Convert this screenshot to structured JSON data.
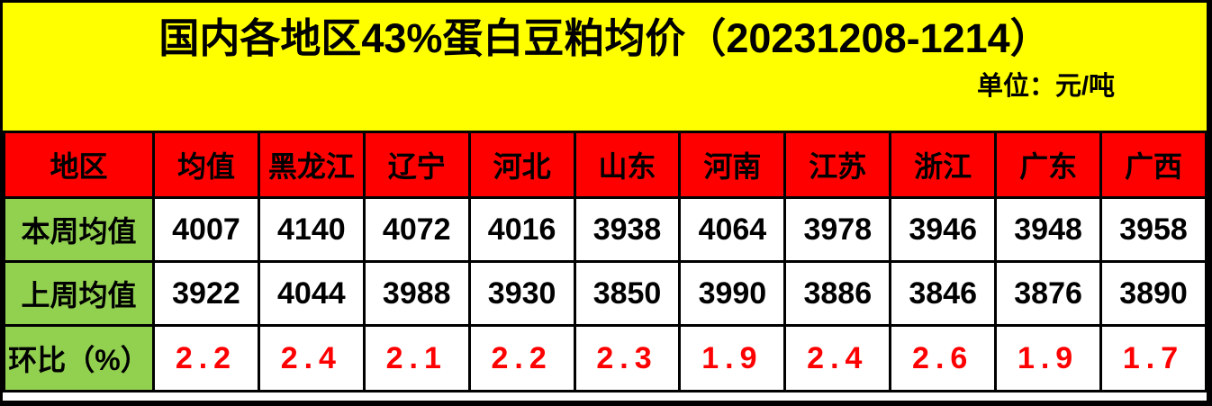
{
  "chart_data": {
    "type": "table",
    "title": "国内各地区43%蛋白豆粕均价（20231208-1214）",
    "unit_label": "单位：元/吨",
    "columns": [
      "地区",
      "均值",
      "黑龙江",
      "辽宁",
      "河北",
      "山东",
      "河南",
      "江苏",
      "浙江",
      "广东",
      "广西"
    ],
    "rows": [
      {
        "label": "本周均值",
        "values": [
          "4007",
          "4140",
          "4072",
          "4016",
          "3938",
          "4064",
          "3978",
          "3946",
          "3948",
          "3958"
        ],
        "value_style": "price"
      },
      {
        "label": "上周均值",
        "values": [
          "3922",
          "4044",
          "3988",
          "3930",
          "3850",
          "3990",
          "3886",
          "3846",
          "3876",
          "3890"
        ],
        "value_style": "price"
      },
      {
        "label": "环比（%）",
        "values": [
          "2.2",
          "2.4",
          "2.1",
          "2.2",
          "2.3",
          "1.9",
          "2.4",
          "2.6",
          "1.9",
          "1.7"
        ],
        "value_style": "ratio"
      }
    ]
  },
  "colors": {
    "band_bg": "#FFFF00",
    "column_header_bg": "#FF0000",
    "row_label_bg": "#92D050",
    "cell_bg": "#FFFFFF",
    "ratio_text": "#FF0000",
    "text": "#000000",
    "border": "#000000"
  }
}
